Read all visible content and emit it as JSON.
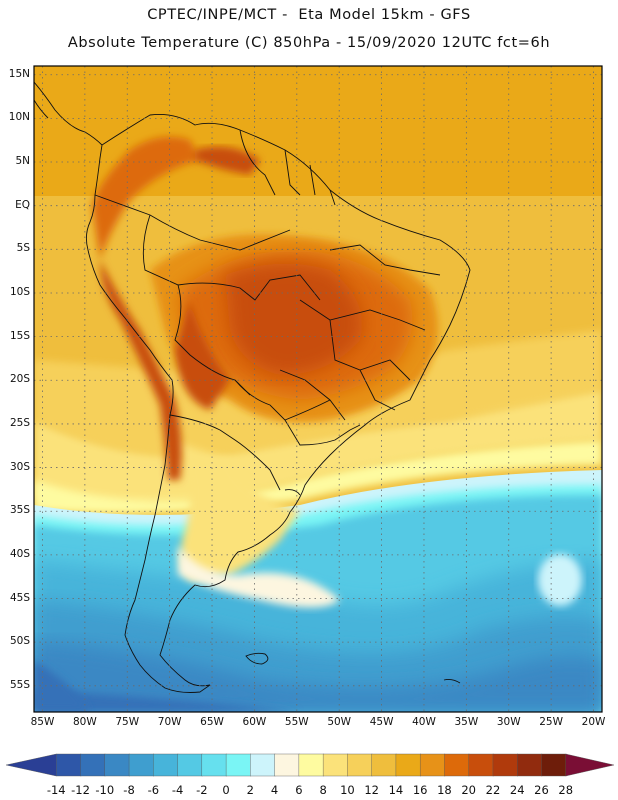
{
  "header": {
    "line1": "CPTEC/INPE/MCT -  Eta Model 15km - GFS",
    "line2": "Absolute Temperature (C) 850hPa - 15/09/2020 12UTC fct=6h"
  },
  "map": {
    "region": "South America",
    "lat_labels": [
      "15N",
      "10N",
      "5N",
      "EQ",
      "5S",
      "10S",
      "15S",
      "20S",
      "25S",
      "30S",
      "35S",
      "40S",
      "45S",
      "50S",
      "55S"
    ],
    "lon_labels": [
      "85W",
      "80W",
      "75W",
      "70W",
      "65W",
      "60W",
      "55W",
      "50W",
      "45W",
      "40W",
      "35W",
      "30W",
      "25W",
      "20W"
    ],
    "extent": {
      "lon_min": -86,
      "lon_max": -19,
      "lat_min": -58,
      "lat_max": 16
    },
    "gridlines": "dotted"
  },
  "colorbar": {
    "labels": [
      "-14",
      "-12",
      "-10",
      "-8",
      "-6",
      "-4",
      "-2",
      "0",
      "2",
      "4",
      "6",
      "8",
      "10",
      "12",
      "14",
      "16",
      "18",
      "20",
      "22",
      "24",
      "26",
      "28"
    ],
    "colors": [
      "#2a3f95",
      "#2e57a8",
      "#3471b8",
      "#3a88c4",
      "#3f9ecf",
      "#47b4da",
      "#54c9e4",
      "#66e0ee",
      "#7af5f5",
      "#cdf4fb",
      "#fdf6e0",
      "#fefba0",
      "#fbe27a",
      "#f6d05a",
      "#efbe3d",
      "#eaa918",
      "#e79218",
      "#dd6a0a",
      "#c84e0c",
      "#b03a0c",
      "#912b0e",
      "#6e1d0a",
      "#7a0e35"
    ],
    "units": "C"
  }
}
